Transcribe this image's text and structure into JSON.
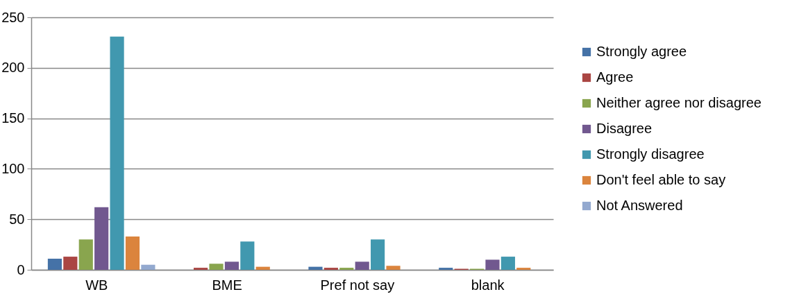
{
  "chart_data": {
    "type": "bar",
    "categories": [
      "WB",
      "BME",
      "Pref not say",
      "blank"
    ],
    "series": [
      {
        "name": "Strongly agree",
        "color": "#4572a7",
        "values": [
          11,
          0,
          3,
          2
        ]
      },
      {
        "name": "Agree",
        "color": "#aa4643",
        "values": [
          13,
          2,
          2,
          1
        ]
      },
      {
        "name": "Neither agree nor disagree",
        "color": "#89a54e",
        "values": [
          30,
          6,
          2,
          1
        ]
      },
      {
        "name": "Disagree",
        "color": "#71588f",
        "values": [
          62,
          8,
          8,
          10
        ]
      },
      {
        "name": "Strongly disagree",
        "color": "#4198af",
        "values": [
          231,
          28,
          30,
          13
        ]
      },
      {
        "name": "Don't feel able to say",
        "color": "#db843d",
        "values": [
          33,
          3,
          4,
          2
        ]
      },
      {
        "name": "Not Answered",
        "color": "#93a9cf",
        "values": [
          5,
          0,
          0,
          0
        ]
      }
    ],
    "ylim": [
      0,
      250
    ],
    "yticks": [
      0,
      50,
      100,
      150,
      200,
      250
    ],
    "grid": "y",
    "legend": "right"
  }
}
